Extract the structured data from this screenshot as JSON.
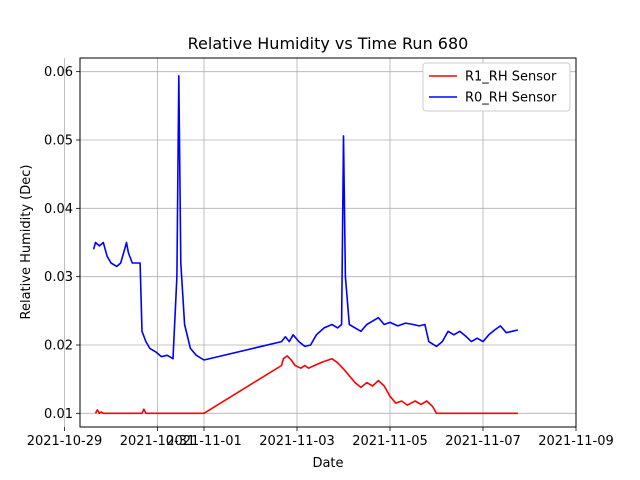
{
  "chart_data": {
    "type": "line",
    "title": "Relative Humidity vs Time Run 680",
    "xlabel": "Date",
    "ylabel": "Relative Humidity (Dec)",
    "grid": true,
    "legend_position": "top-right",
    "xlim": [
      "2021-10-29T08:00",
      "2021-11-09T00:00"
    ],
    "ylim": [
      0.008,
      0.062
    ],
    "x_ticks": [
      "2021-10-29",
      "2021-10-31",
      "2021-11-01",
      "2021-11-03",
      "2021-11-05",
      "2021-11-07",
      "2021-11-09"
    ],
    "x_tick_values": [
      "2021-10-29T00:00",
      "2021-10-31T00:00",
      "2021-11-01T00:00",
      "2021-11-03T00:00",
      "2021-11-05T00:00",
      "2021-11-07T00:00",
      "2021-11-09T00:00"
    ],
    "y_ticks": [
      0.01,
      0.02,
      0.03,
      0.04,
      0.05,
      0.06
    ],
    "y_tick_labels": [
      "0.01",
      "0.02",
      "0.03",
      "0.04",
      "0.05",
      "0.06"
    ],
    "series": [
      {
        "name": "R1_RH Sensor",
        "color": "#ff0000",
        "points": [
          [
            "2021-10-29T16:00",
            0.01
          ],
          [
            "2021-10-29T17:00",
            0.0105
          ],
          [
            "2021-10-29T18:00",
            0.01
          ],
          [
            "2021-10-29T19:00",
            0.0102
          ],
          [
            "2021-10-29T20:00",
            0.01
          ],
          [
            "2021-10-30T16:00",
            0.01
          ],
          [
            "2021-10-30T17:00",
            0.0106
          ],
          [
            "2021-10-30T18:00",
            0.01
          ],
          [
            "2021-11-01T00:00",
            0.01
          ],
          [
            "2021-11-02T16:00",
            0.017
          ],
          [
            "2021-11-02T17:00",
            0.018
          ],
          [
            "2021-11-02T19:00",
            0.0184
          ],
          [
            "2021-11-02T21:00",
            0.0178
          ],
          [
            "2021-11-02T23:00",
            0.017
          ],
          [
            "2021-11-03T02:00",
            0.0166
          ],
          [
            "2021-11-03T04:00",
            0.017
          ],
          [
            "2021-11-03T06:00",
            0.0166
          ],
          [
            "2021-11-03T09:00",
            0.017
          ],
          [
            "2021-11-03T13:00",
            0.0175
          ],
          [
            "2021-11-03T18:00",
            0.018
          ],
          [
            "2021-11-03T21:00",
            0.0174
          ],
          [
            "2021-11-04T00:00",
            0.0165
          ],
          [
            "2021-11-04T03:00",
            0.0155
          ],
          [
            "2021-11-04T06:00",
            0.0145
          ],
          [
            "2021-11-04T09:00",
            0.0138
          ],
          [
            "2021-11-04T12:00",
            0.0145
          ],
          [
            "2021-11-04T15:00",
            0.014
          ],
          [
            "2021-11-04T18:00",
            0.0148
          ],
          [
            "2021-11-04T21:00",
            0.014
          ],
          [
            "2021-11-05T00:00",
            0.0125
          ],
          [
            "2021-11-05T03:00",
            0.0115
          ],
          [
            "2021-11-05T06:00",
            0.0118
          ],
          [
            "2021-11-05T09:00",
            0.0112
          ],
          [
            "2021-11-05T13:00",
            0.0118
          ],
          [
            "2021-11-05T16:00",
            0.0113
          ],
          [
            "2021-11-05T19:00",
            0.0118
          ],
          [
            "2021-11-05T22:00",
            0.011
          ],
          [
            "2021-11-06T00:00",
            0.01
          ],
          [
            "2021-11-07T18:00",
            0.01
          ]
        ]
      },
      {
        "name": "R0_RH Sensor",
        "color": "#0000ff",
        "points": [
          [
            "2021-10-29T15:00",
            0.034
          ],
          [
            "2021-10-29T16:00",
            0.035
          ],
          [
            "2021-10-29T18:00",
            0.0345
          ],
          [
            "2021-10-29T20:00",
            0.035
          ],
          [
            "2021-10-29T22:00",
            0.033
          ],
          [
            "2021-10-30T00:00",
            0.032
          ],
          [
            "2021-10-30T03:00",
            0.0315
          ],
          [
            "2021-10-30T05:00",
            0.032
          ],
          [
            "2021-10-30T07:00",
            0.034
          ],
          [
            "2021-10-30T08:00",
            0.035
          ],
          [
            "2021-10-30T09:00",
            0.0335
          ],
          [
            "2021-10-30T11:00",
            0.032
          ],
          [
            "2021-10-30T15:00",
            0.032
          ],
          [
            "2021-10-30T16:00",
            0.022
          ],
          [
            "2021-10-30T18:00",
            0.0205
          ],
          [
            "2021-10-30T20:00",
            0.0195
          ],
          [
            "2021-10-30T23:00",
            0.019
          ],
          [
            "2021-10-31T02:00",
            0.0183
          ],
          [
            "2021-10-31T05:00",
            0.0185
          ],
          [
            "2021-10-31T08:00",
            0.018
          ],
          [
            "2021-10-31T10:00",
            0.03
          ],
          [
            "2021-10-31T11:00",
            0.0594
          ],
          [
            "2021-10-31T12:00",
            0.032
          ],
          [
            "2021-10-31T14:00",
            0.023
          ],
          [
            "2021-10-31T17:00",
            0.0195
          ],
          [
            "2021-10-31T20:00",
            0.0185
          ],
          [
            "2021-11-01T00:00",
            0.0178
          ],
          [
            "2021-11-02T16:00",
            0.0205
          ],
          [
            "2021-11-02T18:00",
            0.0212
          ],
          [
            "2021-11-02T20:00",
            0.0205
          ],
          [
            "2021-11-02T22:00",
            0.0215
          ],
          [
            "2021-11-03T01:00",
            0.0205
          ],
          [
            "2021-11-03T04:00",
            0.0198
          ],
          [
            "2021-11-03T07:00",
            0.02
          ],
          [
            "2021-11-03T10:00",
            0.0215
          ],
          [
            "2021-11-03T14:00",
            0.0225
          ],
          [
            "2021-11-03T18:00",
            0.023
          ],
          [
            "2021-11-03T21:00",
            0.0225
          ],
          [
            "2021-11-03T23:00",
            0.023
          ],
          [
            "2021-11-04T00:00",
            0.0506
          ],
          [
            "2021-11-04T01:00",
            0.03
          ],
          [
            "2021-11-04T03:00",
            0.023
          ],
          [
            "2021-11-04T06:00",
            0.0225
          ],
          [
            "2021-11-04T09:00",
            0.022
          ],
          [
            "2021-11-04T12:00",
            0.023
          ],
          [
            "2021-11-04T15:00",
            0.0235
          ],
          [
            "2021-11-04T18:00",
            0.024
          ],
          [
            "2021-11-04T21:00",
            0.023
          ],
          [
            "2021-11-05T00:00",
            0.0233
          ],
          [
            "2021-11-05T04:00",
            0.0228
          ],
          [
            "2021-11-05T08:00",
            0.0232
          ],
          [
            "2021-11-05T12:00",
            0.023
          ],
          [
            "2021-11-05T15:00",
            0.0228
          ],
          [
            "2021-11-05T18:00",
            0.023
          ],
          [
            "2021-11-05T20:00",
            0.0205
          ],
          [
            "2021-11-06T00:00",
            0.0198
          ],
          [
            "2021-11-06T03:00",
            0.0205
          ],
          [
            "2021-11-06T06:00",
            0.022
          ],
          [
            "2021-11-06T09:00",
            0.0215
          ],
          [
            "2021-11-06T12:00",
            0.022
          ],
          [
            "2021-11-06T15:00",
            0.0213
          ],
          [
            "2021-11-06T18:00",
            0.0205
          ],
          [
            "2021-11-06T21:00",
            0.021
          ],
          [
            "2021-11-07T00:00",
            0.0205
          ],
          [
            "2021-11-07T03:00",
            0.0215
          ],
          [
            "2021-11-07T06:00",
            0.0222
          ],
          [
            "2021-11-07T09:00",
            0.0228
          ],
          [
            "2021-11-07T12:00",
            0.0218
          ],
          [
            "2021-11-07T15:00",
            0.022
          ],
          [
            "2021-11-07T18:00",
            0.0222
          ]
        ]
      }
    ]
  }
}
